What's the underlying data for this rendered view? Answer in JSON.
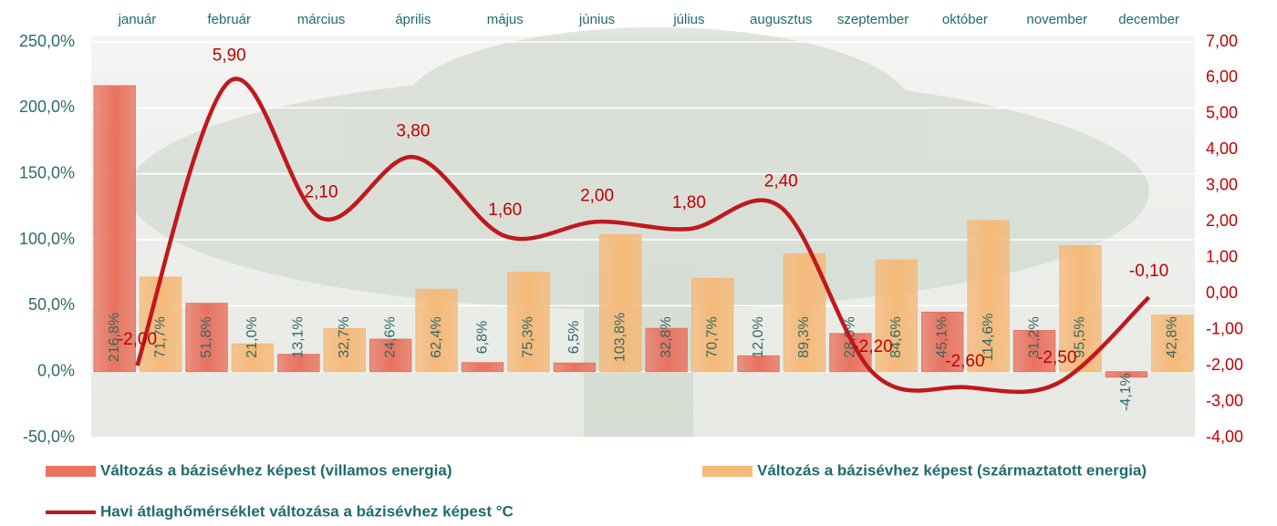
{
  "chart_data": {
    "type": "bar",
    "categories": [
      "január",
      "február",
      "március",
      "április",
      "május",
      "június",
      "július",
      "augusztus",
      "szeptember",
      "október",
      "november",
      "december"
    ],
    "series": [
      {
        "name": "Változás a bázisévhez képest (villamos energia)",
        "color": "#e8735f",
        "type": "bar",
        "values": [
          216.8,
          51.8,
          13.1,
          24.6,
          6.8,
          6.5,
          32.8,
          12.0,
          28.9,
          45.1,
          31.2,
          -4.1
        ],
        "value_labels": [
          "216,8%",
          "51,8%",
          "13,1%",
          "24,6%",
          "6,8%",
          "6,5%",
          "32,8%",
          "12,0%",
          "28,9%",
          "45,1%",
          "31,2%",
          "-4,1%"
        ]
      },
      {
        "name": "Változás a bázisévhez képest (származtatott energia)",
        "color": "#f5b979",
        "type": "bar",
        "values": [
          71.7,
          21.0,
          32.7,
          62.4,
          75.3,
          103.8,
          70.7,
          89.3,
          84.6,
          114.6,
          95.5,
          42.8
        ],
        "value_labels": [
          "71,7%",
          "21,0%",
          "32,7%",
          "62,4%",
          "75,3%",
          "103,8%",
          "70,7%",
          "89,3%",
          "84,6%",
          "114,6%",
          "95,5%",
          "42,8%"
        ]
      },
      {
        "name": "Havi átlaghőmérséklet változása a bázisévhez képest °C",
        "color": "#c0181c",
        "type": "line",
        "axis": "y2",
        "values": [
          -2.0,
          5.9,
          2.1,
          3.8,
          1.6,
          2.0,
          1.8,
          2.4,
          -2.2,
          -2.6,
          -2.5,
          -0.1
        ],
        "value_labels": [
          "-2,00",
          "5,90",
          "2,10",
          "3,80",
          "1,60",
          "2,00",
          "1,80",
          "2,40",
          "-2,20",
          "-2,60",
          "-2,50",
          "-0,10"
        ]
      }
    ],
    "ylim": [
      -50,
      250
    ],
    "yticks": [
      {
        "value": -50,
        "label": "-50,0%"
      },
      {
        "value": 0,
        "label": "0,0%"
      },
      {
        "value": 50,
        "label": "50,0%"
      },
      {
        "value": 100,
        "label": "100,0%"
      },
      {
        "value": 150,
        "label": "150,0%"
      },
      {
        "value": 200,
        "label": "200,0%"
      },
      {
        "value": 250,
        "label": "250,0%"
      }
    ],
    "y2lim": [
      -4,
      7
    ],
    "y2ticks": [
      {
        "value": -4,
        "label": "-4,00"
      },
      {
        "value": -3,
        "label": "-3,00"
      },
      {
        "value": -2,
        "label": "-2,00"
      },
      {
        "value": -1,
        "label": "-1,00"
      },
      {
        "value": 0,
        "label": "0,00"
      },
      {
        "value": 1,
        "label": "1,00"
      },
      {
        "value": 2,
        "label": "2,00"
      },
      {
        "value": 3,
        "label": "3,00"
      },
      {
        "value": 4,
        "label": "4,00"
      },
      {
        "value": 5,
        "label": "5,00"
      },
      {
        "value": 6,
        "label": "6,00"
      },
      {
        "value": 7,
        "label": "7,00"
      }
    ],
    "grid": true
  }
}
